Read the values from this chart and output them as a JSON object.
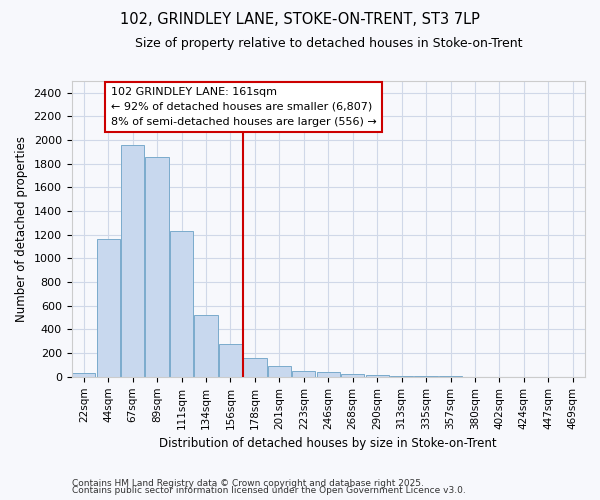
{
  "title1": "102, GRINDLEY LANE, STOKE-ON-TRENT, ST3 7LP",
  "title2": "Size of property relative to detached houses in Stoke-on-Trent",
  "xlabel": "Distribution of detached houses by size in Stoke-on-Trent",
  "ylabel": "Number of detached properties",
  "bar_color": "#c8d8ee",
  "bar_edge_color": "#7aabcc",
  "categories": [
    "22sqm",
    "44sqm",
    "67sqm",
    "89sqm",
    "111sqm",
    "134sqm",
    "156sqm",
    "178sqm",
    "201sqm",
    "223sqm",
    "246sqm",
    "268sqm",
    "290sqm",
    "313sqm",
    "335sqm",
    "357sqm",
    "380sqm",
    "402sqm",
    "424sqm",
    "447sqm",
    "469sqm"
  ],
  "values": [
    30,
    1160,
    1960,
    1855,
    1230,
    520,
    275,
    155,
    90,
    45,
    40,
    20,
    15,
    8,
    5,
    3,
    2,
    1,
    1,
    1,
    1
  ],
  "ylim": [
    0,
    2500
  ],
  "yticks": [
    0,
    200,
    400,
    600,
    800,
    1000,
    1200,
    1400,
    1600,
    1800,
    2000,
    2200,
    2400
  ],
  "red_line_x": 6.5,
  "annotation_text": "102 GRINDLEY LANE: 161sqm\n← 92% of detached houses are smaller (6,807)\n8% of semi-detached houses are larger (556) →",
  "annotation_box_facecolor": "#ffffff",
  "annotation_border_color": "#cc0000",
  "footer1": "Contains HM Land Registry data © Crown copyright and database right 2025.",
  "footer2": "Contains public sector information licensed under the Open Government Licence v3.0.",
  "bg_color": "#f7f8fc",
  "grid_color": "#d0d8e8",
  "spine_color": "#cccccc"
}
